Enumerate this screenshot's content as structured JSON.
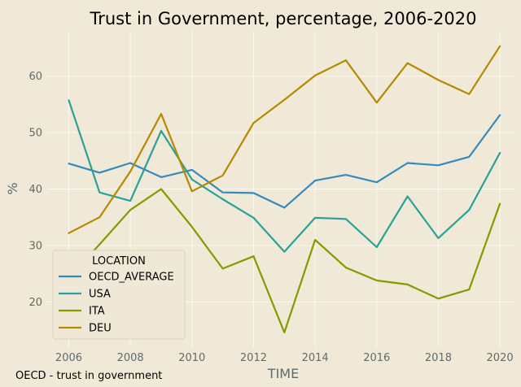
{
  "caption": "OECD - trust in government",
  "chart_data": {
    "type": "line",
    "title": "Trust in Government, percentage, 2006-2020",
    "xlabel": "TIME",
    "ylabel": "%",
    "x": [
      2006,
      2007,
      2008,
      2009,
      2010,
      2011,
      2012,
      2013,
      2014,
      2015,
      2016,
      2017,
      2018,
      2019,
      2020
    ],
    "xlim": [
      2005.3,
      2020.5
    ],
    "ylim": [
      12,
      68
    ],
    "xticks": [
      2006,
      2008,
      2010,
      2012,
      2014,
      2016,
      2018,
      2020
    ],
    "yticks": [
      20,
      30,
      40,
      50,
      60
    ],
    "grid": true,
    "legend": {
      "title": "LOCATION",
      "placement": "lower-left"
    },
    "series": [
      {
        "name": "OECD_AVERAGE",
        "color": "#348abd",
        "values": [
          44.5,
          42.9,
          44.6,
          42.1,
          43.4,
          39.4,
          39.3,
          36.7,
          41.5,
          42.5,
          41.2,
          44.6,
          44.2,
          45.7,
          53.1
        ]
      },
      {
        "name": "USA",
        "color": "#2aa198",
        "values": [
          55.7,
          39.4,
          37.9,
          50.3,
          41.7,
          38.2,
          34.9,
          28.9,
          34.9,
          34.7,
          29.7,
          38.7,
          31.3,
          36.3,
          46.4
        ]
      },
      {
        "name": "ITA",
        "color": "#859900",
        "values": [
          24.3,
          30.2,
          36.3,
          40.0,
          33.3,
          25.9,
          28.1,
          14.6,
          31.0,
          26.1,
          23.8,
          23.1,
          20.6,
          22.2,
          37.4
        ]
      },
      {
        "name": "DEU",
        "color": "#b58900",
        "values": [
          32.2,
          35.0,
          43.1,
          53.3,
          39.6,
          42.4,
          51.7,
          55.8,
          60.1,
          62.8,
          55.3,
          62.3,
          59.3,
          56.8,
          65.3
        ]
      }
    ]
  }
}
